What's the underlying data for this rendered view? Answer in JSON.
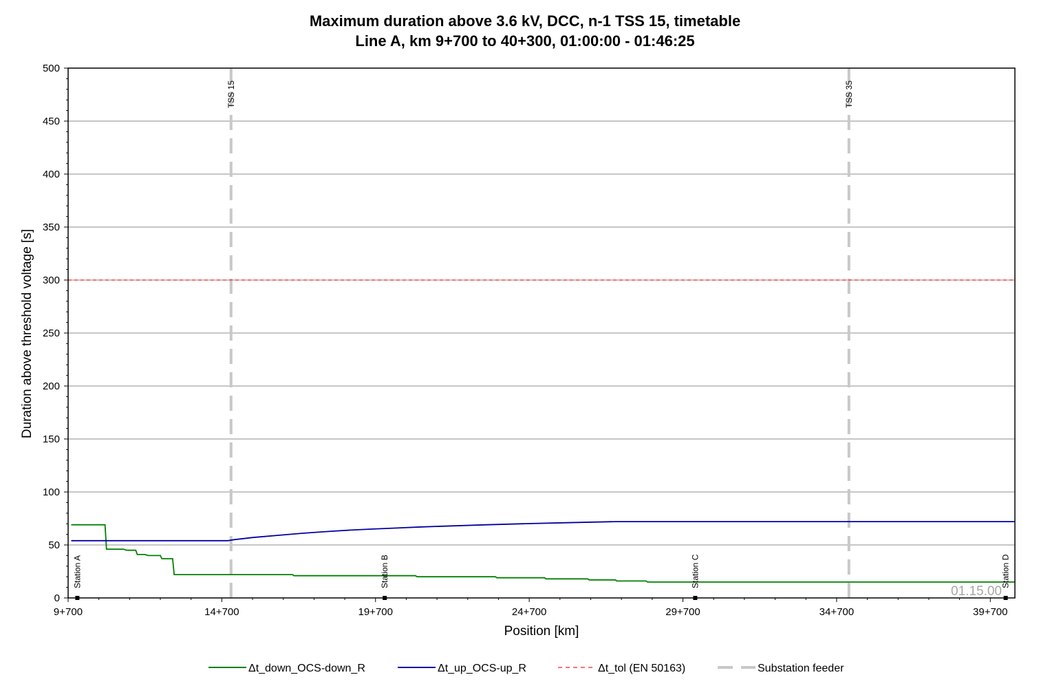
{
  "chart_data": {
    "type": "line",
    "title": "Maximum duration above 3.6 kV, DCC, n-1 TSS 15, timetable",
    "subtitle": "Line A, km 9+700 to 40+300, 01:00:00  - 01:46:25",
    "xlabel": "Position [km]",
    "ylabel": "Duration above threshold voltage [s]",
    "xlim": [
      9.7,
      40.5
    ],
    "ylim": [
      0,
      500
    ],
    "x_ticks": [
      {
        "value": 9.7,
        "label": "9+700"
      },
      {
        "value": 14.7,
        "label": "14+700"
      },
      {
        "value": 19.7,
        "label": "19+700"
      },
      {
        "value": 24.7,
        "label": "24+700"
      },
      {
        "value": 29.7,
        "label": "29+700"
      },
      {
        "value": 34.7,
        "label": "34+700"
      },
      {
        "value": 39.7,
        "label": "39+700"
      }
    ],
    "y_ticks": [
      0,
      50,
      100,
      150,
      200,
      250,
      300,
      350,
      400,
      450,
      500
    ],
    "grid": true,
    "legend_position": "bottom",
    "colors": {
      "down": "#008000",
      "up": "#0000a0",
      "tol": "#ff4040",
      "feeder": "#c8c8c8"
    },
    "series": [
      {
        "name": "Δt_down_OCS-down_R",
        "style": "solid",
        "color": "#008000",
        "points": [
          [
            9.8,
            69
          ],
          [
            10.9,
            69
          ],
          [
            10.95,
            46
          ],
          [
            11.5,
            46
          ],
          [
            11.6,
            45
          ],
          [
            11.9,
            45
          ],
          [
            11.95,
            41
          ],
          [
            12.2,
            41
          ],
          [
            12.3,
            40
          ],
          [
            12.7,
            40
          ],
          [
            12.75,
            37
          ],
          [
            13.1,
            37
          ],
          [
            13.15,
            22
          ],
          [
            17.0,
            22
          ],
          [
            17.05,
            21
          ],
          [
            21.0,
            21
          ],
          [
            21.05,
            20
          ],
          [
            23.6,
            20
          ],
          [
            23.65,
            19
          ],
          [
            25.2,
            19
          ],
          [
            25.25,
            18
          ],
          [
            26.6,
            18
          ],
          [
            26.65,
            17
          ],
          [
            27.5,
            17
          ],
          [
            27.55,
            16
          ],
          [
            28.5,
            16
          ],
          [
            28.55,
            15
          ],
          [
            40.5,
            15
          ]
        ]
      },
      {
        "name": "Δt_up_OCS-up_R",
        "style": "solid",
        "color": "#0000a0",
        "points": [
          [
            9.8,
            54
          ],
          [
            14.9,
            54
          ],
          [
            15.1,
            55
          ],
          [
            15.4,
            56
          ],
          [
            15.7,
            57
          ],
          [
            16.1,
            58
          ],
          [
            16.5,
            59
          ],
          [
            16.9,
            60
          ],
          [
            17.3,
            61
          ],
          [
            17.8,
            62
          ],
          [
            18.3,
            63
          ],
          [
            18.9,
            64
          ],
          [
            19.6,
            65
          ],
          [
            20.4,
            66
          ],
          [
            21.2,
            67
          ],
          [
            22.2,
            68
          ],
          [
            23.3,
            69
          ],
          [
            24.5,
            70
          ],
          [
            25.9,
            71
          ],
          [
            27.5,
            72
          ],
          [
            40.5,
            72
          ]
        ]
      },
      {
        "name": "Δt_tol (EN 50163)",
        "style": "dashed",
        "color": "#ff4040",
        "points": [
          [
            9.7,
            300
          ],
          [
            40.5,
            300
          ]
        ]
      }
    ],
    "feeders": [
      {
        "name": "TSS 15",
        "x": 15.0
      },
      {
        "name": "TSS 35",
        "x": 35.1
      }
    ],
    "feeder_legend": "Substation feeder",
    "stations": [
      {
        "name": "Station A",
        "x": 10.0
      },
      {
        "name": "Station B",
        "x": 20.0
      },
      {
        "name": "Station C",
        "x": 30.1
      },
      {
        "name": "Station D",
        "x": 40.2
      }
    ],
    "watermark": "01.15.00"
  }
}
